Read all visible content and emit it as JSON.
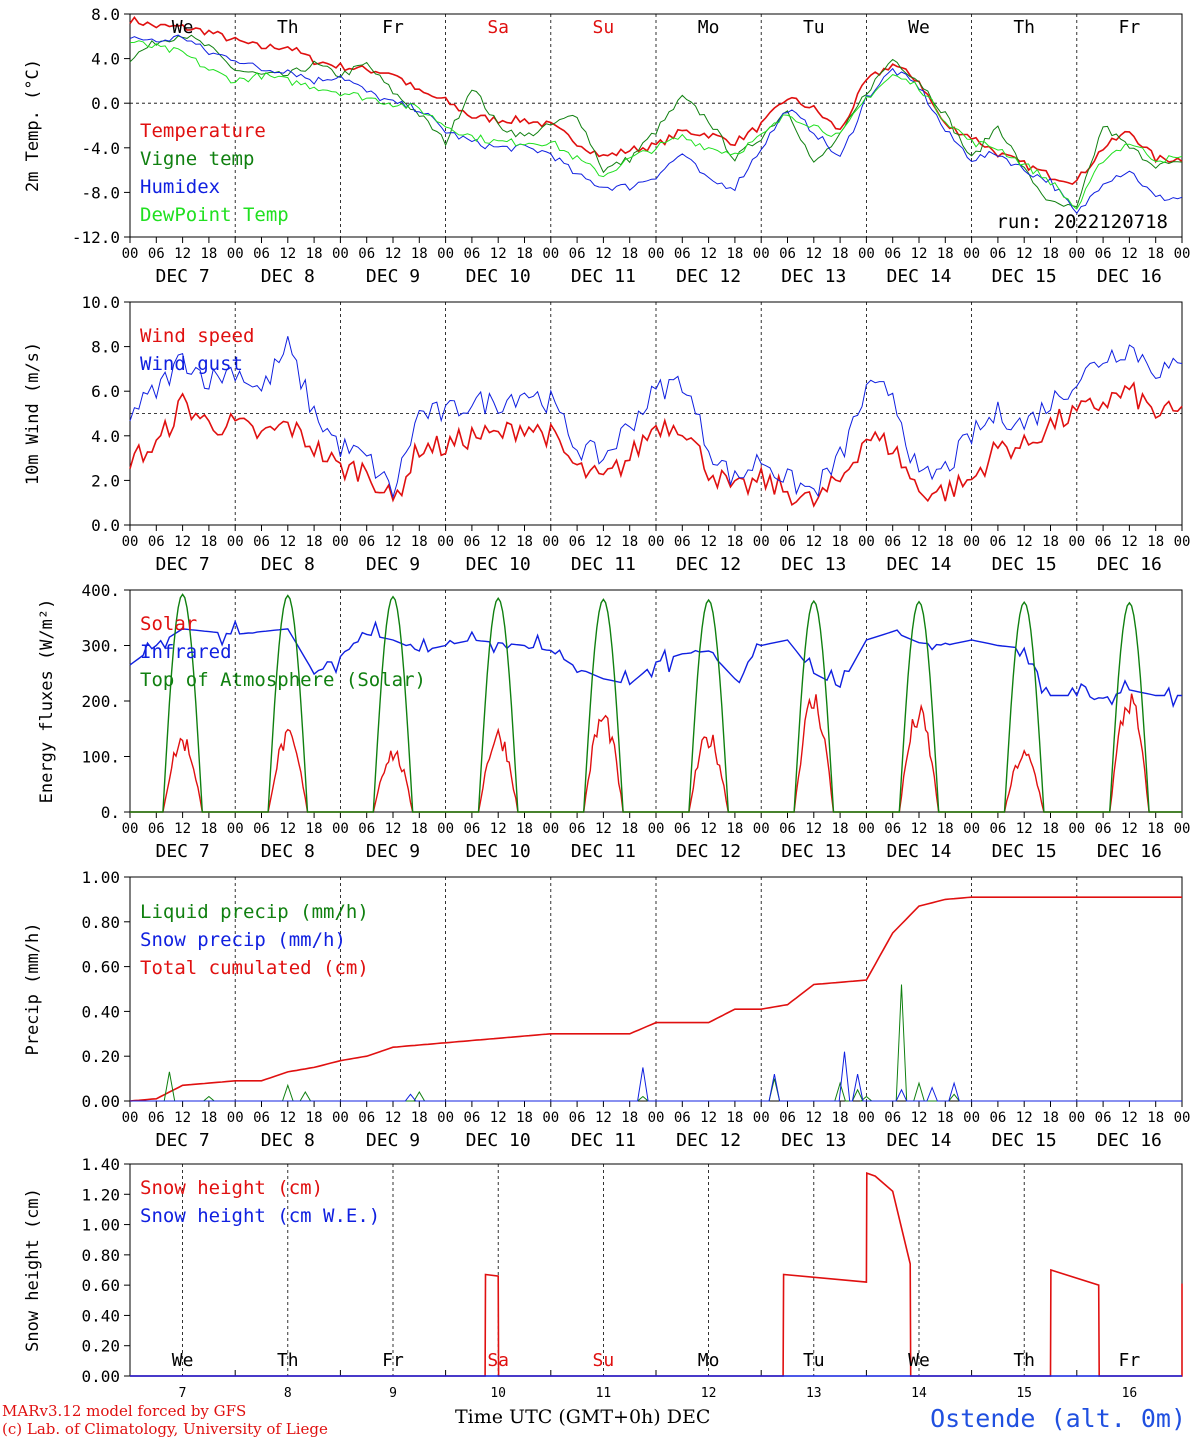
{
  "header": {
    "days_top": [
      "We",
      "Th",
      "Fr",
      "Sa",
      "Su",
      "Mo",
      "Tu",
      "We",
      "Th",
      "Fr"
    ],
    "weekend_color": "#e01010",
    "run_label": "run: 2022120718"
  },
  "axis": {
    "hour_ticks": [
      "00",
      "06",
      "12",
      "18"
    ],
    "date_labels": [
      "DEC  7",
      "DEC  8",
      "DEC  9",
      "DEC 10",
      "DEC 11",
      "DEC 12",
      "DEC 13",
      "DEC 14",
      "DEC 15",
      "DEC 16"
    ],
    "bottom_day_numbers": [
      "7",
      "8",
      "9",
      "10",
      "11",
      "12",
      "13",
      "14",
      "15",
      "16"
    ],
    "x_title": "Time UTC (GMT+0h)",
    "month": "DEC"
  },
  "footer": {
    "credit_line1": "MARv3.12 model forced by GFS",
    "credit_line2": "(c) Lab. of Climatology, University of Liege",
    "station": "Ostende (alt. 0m)"
  },
  "chart_data": [
    {
      "type": "line",
      "ylabel": "2m Temp. (°C)",
      "ylim": [
        -12,
        8
      ],
      "yticks": [
        "8.0",
        "4.0",
        "0.0",
        "-4.0",
        "-8.0",
        "-12.0"
      ],
      "ref_line": 0,
      "legend": [
        "Temperature",
        "Vigne temp",
        "Humidex",
        "DewPoint Temp"
      ],
      "colors": [
        "#e01010",
        "#108010",
        "#1020e0",
        "#20e020"
      ],
      "x": [
        0,
        6,
        12,
        18,
        24,
        30,
        36,
        42,
        48,
        54,
        60,
        66,
        72,
        78,
        84,
        90,
        96,
        102,
        108,
        114,
        120,
        126,
        132,
        138,
        144,
        150,
        156,
        162,
        168,
        174,
        180,
        186,
        192,
        198,
        204,
        210,
        216,
        222,
        228,
        234
      ],
      "series": [
        {
          "name": "Temperature",
          "values": [
            7.5,
            6.9,
            6.8,
            6.4,
            5.6,
            5.0,
            5.1,
            3.8,
            3.3,
            3.0,
            2.7,
            1.0,
            0.2,
            -1.2,
            -1.5,
            -1.5,
            -2.0,
            -3.5,
            -4.8,
            -4.2,
            -3.8,
            -2.5,
            -2.8,
            -3.5,
            -2.0,
            0.5,
            -0.5,
            -2.5,
            2.0,
            3.5,
            2.0,
            -2.0,
            -3.0,
            -4.5,
            -5.5,
            -6.5,
            -7.0,
            -4.0,
            -2.5,
            -5.0
          ]
        },
        {
          "name": "Vigne temp",
          "values": [
            4.0,
            5.5,
            6.2,
            5.0,
            3.0,
            2.5,
            2.5,
            3.5,
            2.5,
            3.5,
            1.0,
            -1.0,
            -3.5,
            1.5,
            -2.0,
            -3.0,
            -2.0,
            -1.0,
            -6.0,
            -5.0,
            -2.5,
            0.5,
            -1.5,
            -5.0,
            -3.0,
            -0.5,
            -5.5,
            -3.0,
            1.0,
            4.0,
            2.0,
            -1.0,
            -5.0,
            -2.0,
            -6.0,
            -9.0,
            -9.5,
            -2.0,
            -4.0,
            -5.5
          ]
        },
        {
          "name": "Humidex",
          "values": [
            6.0,
            5.5,
            6.0,
            4.5,
            4.0,
            3.0,
            3.0,
            2.0,
            2.5,
            1.0,
            0.0,
            -0.5,
            -2.5,
            -3.5,
            -4.0,
            -4.0,
            -4.5,
            -6.5,
            -7.5,
            -7.5,
            -6.5,
            -4.5,
            -7.0,
            -7.5,
            -4.0,
            -0.5,
            -2.5,
            -5.0,
            0.5,
            3.0,
            1.5,
            -2.5,
            -5.0,
            -4.5,
            -6.0,
            -7.0,
            -10.0,
            -7.0,
            -6.0,
            -8.5
          ]
        },
        {
          "name": "DewPoint Temp",
          "values": [
            5.5,
            5.0,
            4.5,
            3.0,
            2.0,
            2.5,
            2.0,
            1.5,
            1.0,
            0.5,
            0.0,
            -0.5,
            -2.0,
            -3.0,
            -3.5,
            -3.5,
            -3.5,
            -5.0,
            -6.5,
            -5.0,
            -4.0,
            -3.0,
            -4.0,
            -4.5,
            -3.0,
            -1.0,
            -2.0,
            -3.0,
            0.5,
            2.5,
            1.5,
            -1.5,
            -3.5,
            -4.0,
            -5.5,
            -7.0,
            -9.5,
            -5.0,
            -3.5,
            -5.0
          ]
        }
      ]
    },
    {
      "type": "line",
      "ylabel": "10m Wind (m/s)",
      "ylim": [
        0,
        10
      ],
      "yticks": [
        "10.0",
        "8.0",
        "6.0",
        "4.0",
        "2.0",
        "0.0"
      ],
      "ref_line": 5,
      "legend": [
        "Wind speed",
        "Wind gust"
      ],
      "colors": [
        "#e01010",
        "#1020e0"
      ],
      "x": [
        0,
        6,
        12,
        18,
        24,
        30,
        36,
        42,
        48,
        54,
        60,
        66,
        72,
        78,
        84,
        90,
        96,
        102,
        108,
        114,
        120,
        126,
        132,
        138,
        144,
        150,
        156,
        162,
        168,
        174,
        180,
        186,
        192,
        198,
        204,
        210,
        216,
        222,
        228,
        234
      ],
      "series": [
        {
          "name": "Wind speed",
          "values": [
            3.0,
            3.5,
            5.5,
            4.5,
            4.5,
            4.0,
            4.5,
            3.5,
            2.5,
            2.5,
            1.0,
            3.5,
            3.5,
            4.0,
            4.0,
            4.5,
            4.0,
            2.5,
            2.0,
            3.0,
            4.5,
            4.5,
            2.5,
            1.5,
            2.0,
            1.5,
            1.0,
            2.0,
            4.0,
            3.5,
            1.5,
            1.5,
            2.0,
            3.5,
            3.5,
            4.5,
            5.0,
            5.5,
            6.0,
            5.0
          ]
        },
        {
          "name": "Wind gust",
          "values": [
            5.0,
            6.0,
            7.5,
            6.5,
            7.0,
            6.0,
            8.0,
            5.0,
            3.5,
            3.0,
            1.5,
            5.0,
            5.0,
            5.5,
            5.5,
            6.0,
            5.5,
            3.5,
            3.0,
            4.5,
            6.0,
            6.5,
            3.5,
            2.0,
            3.0,
            2.0,
            1.5,
            3.0,
            6.0,
            6.0,
            2.0,
            2.5,
            4.0,
            5.0,
            4.5,
            5.5,
            6.5,
            7.5,
            8.0,
            7.0
          ]
        }
      ]
    },
    {
      "type": "line",
      "ylabel": "Energy fluxes (W/m²)",
      "ylim": [
        0,
        400
      ],
      "yticks": [
        "400.",
        "300.",
        "200.",
        "100.",
        "0."
      ],
      "legend": [
        "Solar",
        "Infrared",
        "Top of Atmosphere (Solar)"
      ],
      "colors": [
        "#e01010",
        "#1020e0",
        "#108010"
      ],
      "series": [
        {
          "name": "Solar",
          "daily_peak": [
            145,
            150,
            120,
            155,
            190,
            150,
            225,
            195,
            115,
            225
          ]
        },
        {
          "name": "Infrared",
          "x": [
            0,
            6,
            12,
            18,
            24,
            30,
            36,
            42,
            48,
            54,
            60,
            66,
            72,
            78,
            84,
            90,
            96,
            102,
            108,
            114,
            120,
            126,
            132,
            138,
            144,
            150,
            156,
            162,
            168,
            174,
            180,
            186,
            192,
            198,
            204,
            210,
            216,
            222,
            228,
            234
          ],
          "values": [
            265,
            300,
            330,
            325,
            320,
            325,
            330,
            250,
            280,
            320,
            310,
            290,
            300,
            310,
            305,
            300,
            290,
            260,
            240,
            230,
            270,
            285,
            290,
            240,
            300,
            310,
            250,
            225,
            310,
            325,
            305,
            300,
            310,
            300,
            295,
            210,
            210,
            205,
            220,
            210
          ]
        },
        {
          "name": "Top of Atmosphere (Solar)",
          "daily_peak": [
            392,
            390,
            388,
            385,
            383,
            382,
            380,
            379,
            378,
            377
          ]
        }
      ]
    },
    {
      "type": "line",
      "ylabel": "Precip (mm/h)",
      "ylim": [
        0,
        1
      ],
      "yticks": [
        "1.00",
        "0.80",
        "0.60",
        "0.40",
        "0.20",
        "0.00"
      ],
      "legend": [
        "Liquid precip (mm/h)",
        "Snow precip (mm/h)",
        "Total cumulated (cm)"
      ],
      "colors": [
        "#108010",
        "#1020e0",
        "#e01010"
      ],
      "series": [
        {
          "name": "Total cumulated (cm)",
          "x": [
            0,
            6,
            12,
            18,
            24,
            30,
            36,
            42,
            48,
            54,
            60,
            66,
            72,
            78,
            84,
            90,
            96,
            102,
            108,
            114,
            120,
            126,
            132,
            138,
            144,
            150,
            156,
            162,
            168,
            174,
            180,
            186,
            192,
            198,
            204,
            210,
            216,
            222,
            228,
            234
          ],
          "values": [
            0.0,
            0.01,
            0.07,
            0.08,
            0.09,
            0.09,
            0.13,
            0.15,
            0.18,
            0.2,
            0.24,
            0.25,
            0.26,
            0.27,
            0.28,
            0.29,
            0.3,
            0.3,
            0.3,
            0.3,
            0.35,
            0.35,
            0.35,
            0.41,
            0.41,
            0.43,
            0.52,
            0.53,
            0.54,
            0.75,
            0.87,
            0.9,
            0.91,
            0.91,
            0.91,
            0.91,
            0.91,
            0.91,
            0.91,
            0.91
          ]
        },
        {
          "name": "Liquid precip (mm/h)",
          "x": [
            9,
            18,
            36,
            40,
            66,
            117,
            147,
            162,
            166,
            168,
            176,
            180,
            188
          ],
          "values": [
            0.13,
            0.02,
            0.07,
            0.04,
            0.04,
            0.02,
            0.1,
            0.08,
            0.05,
            0.02,
            0.52,
            0.08,
            0.03
          ]
        },
        {
          "name": "Snow precip (mm/h)",
          "x": [
            64,
            117,
            147,
            163,
            166,
            176,
            183,
            188
          ],
          "values": [
            0.03,
            0.15,
            0.12,
            0.22,
            0.12,
            0.05,
            0.06,
            0.08
          ]
        }
      ]
    },
    {
      "type": "line",
      "ylabel": "Snow height (cm)",
      "ylim": [
        0,
        1.4
      ],
      "yticks": [
        "1.40",
        "1.20",
        "1.00",
        "0.80",
        "0.60",
        "0.40",
        "0.20",
        "0.00"
      ],
      "legend": [
        "Snow height (cm)",
        "Snow height (cm W.E.)"
      ],
      "colors": [
        "#e01010",
        "#1020e0"
      ],
      "days_bottom": [
        "We",
        "Th",
        "Fr",
        "Sa",
        "Su",
        "Mo",
        "Tu",
        "We",
        "Th",
        "Fr"
      ],
      "series": [
        {
          "name": "Snow height (cm)",
          "x": [
            0,
            81,
            81.1,
            84,
            84.1,
            149,
            149.1,
            168,
            168.1,
            170,
            174,
            178,
            178.1,
            210,
            210.1,
            221,
            221.1,
            244,
            244.1,
            249,
            249.1,
            250,
            250.1,
            251,
            251.1,
            252,
            252.1,
            256,
            256.1,
            262
          ],
          "values": [
            0,
            0,
            0.67,
            0.66,
            0,
            0,
            0.67,
            0.62,
            1.34,
            1.32,
            1.22,
            0.74,
            0,
            0,
            0.7,
            0.6,
            0,
            0,
            0.6,
            0.61,
            0,
            0,
            0,
            0,
            0,
            0,
            0,
            0,
            0.6,
            0.6
          ]
        },
        {
          "name": "Snow height (cm W.E.)",
          "x": [
            0,
            240
          ],
          "values": [
            0,
            0
          ]
        }
      ]
    }
  ]
}
